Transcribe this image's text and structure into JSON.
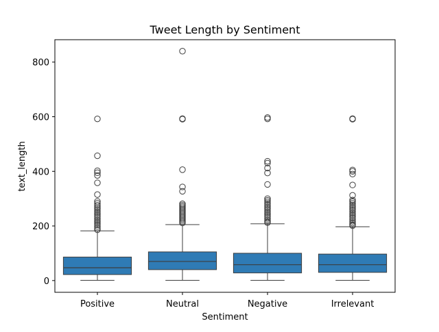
{
  "chart_data": {
    "type": "box",
    "title": "Tweet Length by Sentiment",
    "xlabel": "Sentiment",
    "ylabel": "text_length",
    "ylim": [
      -43,
      882
    ],
    "yticks": [
      0,
      200,
      400,
      600,
      800
    ],
    "grid": false,
    "box_color": "#2f7bb5",
    "series": [
      {
        "category": "Positive",
        "min": 1,
        "q1": 22,
        "median": 47,
        "q3": 86,
        "whisker_high": 182,
        "outliers": [
          592,
          457,
          402,
          395,
          385,
          358,
          315,
          290,
          283,
          276,
          270,
          264,
          258,
          252,
          246,
          240,
          234,
          228,
          222,
          216,
          210,
          204,
          198,
          192,
          186
        ]
      },
      {
        "category": "Neutral",
        "min": 1,
        "q1": 40,
        "median": 70,
        "q3": 105,
        "whisker_high": 205,
        "outliers": [
          840,
          593,
          591,
          406,
          343,
          327,
          281,
          276,
          271,
          266,
          261,
          256,
          251,
          246,
          241,
          236,
          231,
          226,
          221,
          216,
          211
        ]
      },
      {
        "category": "Negative",
        "min": 1,
        "q1": 28,
        "median": 58,
        "q3": 100,
        "whisker_high": 208,
        "outliers": [
          597,
          592,
          437,
          430,
          412,
          394,
          352,
          300,
          294,
          288,
          282,
          276,
          270,
          264,
          258,
          252,
          246,
          240,
          234,
          228,
          222,
          216,
          212
        ]
      },
      {
        "category": "Irrelevant",
        "min": 1,
        "q1": 30,
        "median": 58,
        "q3": 97,
        "whisker_high": 197,
        "outliers": [
          593,
          591,
          405,
          400,
          390,
          350,
          312,
          295,
          289,
          283,
          277,
          271,
          265,
          259,
          253,
          247,
          241,
          235,
          229,
          223,
          217,
          211,
          205,
          201
        ]
      }
    ]
  }
}
